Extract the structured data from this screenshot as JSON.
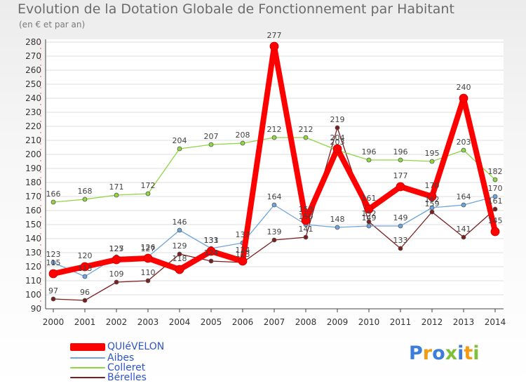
{
  "title": "Evolution de la Dotation Globale de Fonctionnement par Habitant",
  "subtitle": "(en € et par an)",
  "brand": "Proxiti",
  "colors": {
    "QUIéVELON": "#ff0000",
    "Aibes": "#6fa5d9",
    "Colleret": "#8fd641",
    "Bérelles": "#7a1f1f",
    "axis": "#444444",
    "grid": "#dddddd",
    "legend_text": "#2f55c8"
  },
  "chart_data": {
    "type": "line",
    "title": "Evolution de la Dotation Globale de Fonctionnement par Habitant",
    "ylabel": "(en € et par an)",
    "xlabel": "",
    "ylim": [
      90,
      280
    ],
    "yticks": [
      90,
      100,
      110,
      120,
      130,
      140,
      150,
      160,
      170,
      180,
      190,
      200,
      210,
      220,
      230,
      240,
      250,
      260,
      270,
      280
    ],
    "categories": [
      "2000",
      "2001",
      "2002",
      "2003",
      "2004",
      "2005",
      "2006",
      "2007",
      "2008",
      "2009",
      "2010",
      "2011",
      "2012",
      "2013",
      "2014"
    ],
    "series": [
      {
        "name": "Bérelles",
        "color": "#7a1f1f",
        "values": [
          97,
          96,
          109,
          110,
          129,
          124,
          123,
          139,
          141,
          219,
          152,
          133,
          159,
          141,
          161
        ]
      },
      {
        "name": "Aibes",
        "color": "#6fa5d9",
        "values": [
          123,
          113,
          127,
          127,
          146,
          133,
          137,
          164,
          150,
          148,
          149,
          149,
          162,
          164,
          170
        ]
      },
      {
        "name": "Colleret",
        "color": "#8fd641",
        "values": [
          166,
          168,
          171,
          172,
          204,
          207,
          208,
          212,
          212,
          203,
          196,
          196,
          195,
          203,
          182
        ]
      },
      {
        "name": "QUIéVELON",
        "color": "#ff0000",
        "values": [
          115,
          120,
          125,
          126,
          118,
          131,
          124,
          277,
          153,
          204,
          161,
          177,
          170,
          240,
          145
        ]
      }
    ],
    "data_labels": [
      {
        "text": "97",
        "series": "Bérelles",
        "index": 0,
        "place": "above"
      },
      {
        "text": "96",
        "series": "Bérelles",
        "index": 1,
        "place": "above"
      },
      {
        "text": "109",
        "series": "Bérelles",
        "index": 2,
        "place": "above"
      },
      {
        "text": "110",
        "series": "Bérelles",
        "index": 3,
        "place": "above"
      },
      {
        "text": "129",
        "series": "Bérelles",
        "index": 4,
        "place": "above"
      },
      {
        "text": "124",
        "series": "Bérelles",
        "index": 5,
        "place": "above"
      },
      {
        "text": "123",
        "series": "Bérelles",
        "index": 6,
        "place": "above"
      },
      {
        "text": "139",
        "series": "Bérelles",
        "index": 7,
        "place": "above"
      },
      {
        "text": "141",
        "series": "Bérelles",
        "index": 8,
        "place": "above"
      },
      {
        "text": "219",
        "series": "Bérelles",
        "index": 9,
        "place": "above"
      },
      {
        "text": "152",
        "series": "Bérelles",
        "index": 10,
        "place": "above"
      },
      {
        "text": "133",
        "series": "Bérelles",
        "index": 11,
        "place": "above"
      },
      {
        "text": "159",
        "series": "Bérelles",
        "index": 12,
        "place": "above"
      },
      {
        "text": "141",
        "series": "Bérelles",
        "index": 13,
        "place": "above"
      },
      {
        "text": "161",
        "series": "Bérelles",
        "index": 14,
        "place": "above"
      },
      {
        "text": "123",
        "series": "Aibes",
        "index": 0,
        "place": "above"
      },
      {
        "text": "113",
        "series": "Aibes",
        "index": 1,
        "place": "above"
      },
      {
        "text": "127",
        "series": "Aibes",
        "index": 2,
        "place": "above"
      },
      {
        "text": "127",
        "series": "Aibes",
        "index": 3,
        "place": "above"
      },
      {
        "text": "146",
        "series": "Aibes",
        "index": 4,
        "place": "above"
      },
      {
        "text": "133",
        "series": "Aibes",
        "index": 5,
        "place": "above"
      },
      {
        "text": "137",
        "series": "Aibes",
        "index": 6,
        "place": "above"
      },
      {
        "text": "164",
        "series": "Aibes",
        "index": 7,
        "place": "above"
      },
      {
        "text": "150",
        "series": "Aibes",
        "index": 8,
        "place": "above"
      },
      {
        "text": "148",
        "series": "Aibes",
        "index": 9,
        "place": "above"
      },
      {
        "text": "149",
        "series": "Aibes",
        "index": 10,
        "place": "above"
      },
      {
        "text": "149",
        "series": "Aibes",
        "index": 11,
        "place": "above"
      },
      {
        "text": "162",
        "series": "Aibes",
        "index": 12,
        "place": "above"
      },
      {
        "text": "164",
        "series": "Aibes",
        "index": 13,
        "place": "above"
      },
      {
        "text": "170",
        "series": "Aibes",
        "index": 14,
        "place": "above"
      },
      {
        "text": "166",
        "series": "Colleret",
        "index": 0,
        "place": "above"
      },
      {
        "text": "168",
        "series": "Colleret",
        "index": 1,
        "place": "above"
      },
      {
        "text": "171",
        "series": "Colleret",
        "index": 2,
        "place": "above"
      },
      {
        "text": "172",
        "series": "Colleret",
        "index": 3,
        "place": "above"
      },
      {
        "text": "204",
        "series": "Colleret",
        "index": 4,
        "place": "above"
      },
      {
        "text": "207",
        "series": "Colleret",
        "index": 5,
        "place": "above"
      },
      {
        "text": "208",
        "series": "Colleret",
        "index": 6,
        "place": "above"
      },
      {
        "text": "212",
        "series": "Colleret",
        "index": 7,
        "place": "above"
      },
      {
        "text": "212",
        "series": "Colleret",
        "index": 8,
        "place": "above"
      },
      {
        "text": "203",
        "series": "Colleret",
        "index": 9,
        "place": "above"
      },
      {
        "text": "196",
        "series": "Colleret",
        "index": 10,
        "place": "above"
      },
      {
        "text": "196",
        "series": "Colleret",
        "index": 11,
        "place": "above"
      },
      {
        "text": "195",
        "series": "Colleret",
        "index": 12,
        "place": "above"
      },
      {
        "text": "203",
        "series": "Colleret",
        "index": 13,
        "place": "above"
      },
      {
        "text": "182",
        "series": "Colleret",
        "index": 14,
        "place": "above"
      },
      {
        "text": "115",
        "series": "QUIéVELON",
        "index": 0,
        "place": "above"
      },
      {
        "text": "120",
        "series": "QUIéVELON",
        "index": 1,
        "place": "above"
      },
      {
        "text": "125",
        "series": "QUIéVELON",
        "index": 2,
        "place": "above"
      },
      {
        "text": "126",
        "series": "QUIéVELON",
        "index": 3,
        "place": "above"
      },
      {
        "text": "118",
        "series": "QUIéVELON",
        "index": 4,
        "place": "above"
      },
      {
        "text": "131",
        "series": "QUIéVELON",
        "index": 5,
        "place": "above"
      },
      {
        "text": "124",
        "series": "QUIéVELON",
        "index": 6,
        "place": "above"
      },
      {
        "text": "277",
        "series": "QUIéVELON",
        "index": 7,
        "place": "above"
      },
      {
        "text": "153",
        "series": "QUIéVELON",
        "index": 8,
        "place": "above"
      },
      {
        "text": "204",
        "series": "QUIéVELON",
        "index": 9,
        "place": "above"
      },
      {
        "text": "161",
        "series": "QUIéVELON",
        "index": 10,
        "place": "above"
      },
      {
        "text": "177",
        "series": "QUIéVELON",
        "index": 11,
        "place": "above"
      },
      {
        "text": "170",
        "series": "QUIéVELON",
        "index": 12,
        "place": "above"
      },
      {
        "text": "240",
        "series": "QUIéVELON",
        "index": 13,
        "place": "above"
      },
      {
        "text": "145",
        "series": "QUIéVELON",
        "index": 14,
        "place": "above"
      }
    ],
    "legend": [
      "QUIéVELON",
      "Aibes",
      "Colleret",
      "Bérelles"
    ],
    "legend_position": "bottom-left",
    "grid": true
  }
}
